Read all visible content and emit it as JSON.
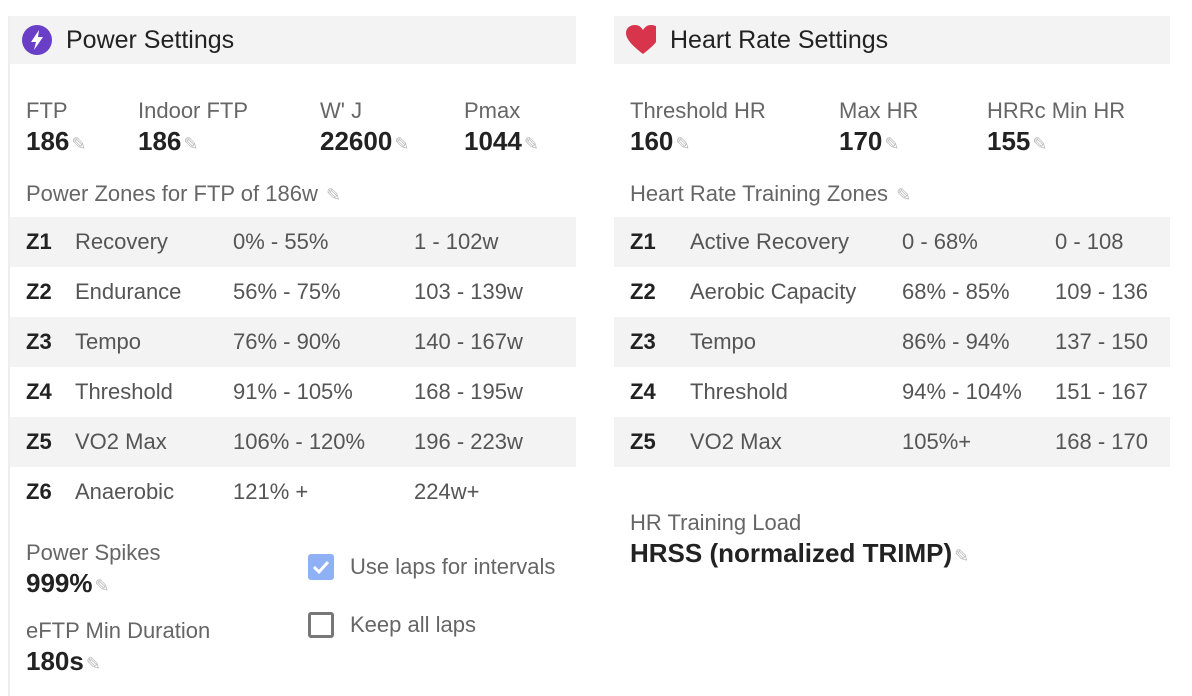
{
  "power": {
    "title": "Power Settings",
    "accent": "#6a3fc8",
    "fields": [
      {
        "label": "FTP",
        "value": "186"
      },
      {
        "label": "Indoor FTP",
        "value": "186"
      },
      {
        "label": "W' J",
        "value": "22600"
      },
      {
        "label": "Pmax",
        "value": "1044"
      }
    ],
    "zones_title": "Power Zones for FTP of 186w",
    "zones": [
      [
        "Z1",
        "Recovery",
        "0% - 55%",
        "1 - 102w"
      ],
      [
        "Z2",
        "Endurance",
        "56% - 75%",
        "103 - 139w"
      ],
      [
        "Z3",
        "Tempo",
        "76% - 90%",
        "140 - 167w"
      ],
      [
        "Z4",
        "Threshold",
        "91% - 105%",
        "168 - 195w"
      ],
      [
        "Z5",
        "VO2 Max",
        "106% - 120%",
        "196 - 223w"
      ],
      [
        "Z6",
        "Anaerobic",
        "121% +",
        "224w+"
      ]
    ],
    "spikes_label": "Power Spikes",
    "spikes_value": "999%",
    "eftp_label": "eFTP Min Duration",
    "eftp_value": "180s",
    "use_laps_label": "Use laps for intervals",
    "use_laps_checked": true,
    "keep_laps_label": "Keep all laps",
    "keep_laps_checked": false
  },
  "hr": {
    "title": "Heart Rate Settings",
    "accent": "#d8344b",
    "fields": [
      {
        "label": "Threshold HR",
        "value": "160"
      },
      {
        "label": "Max HR",
        "value": "170"
      },
      {
        "label": "HRRc Min HR",
        "value": "155"
      }
    ],
    "zones_title": "Heart Rate Training Zones",
    "zones": [
      [
        "Z1",
        "Active Recovery",
        "0 - 68%",
        "0 - 108"
      ],
      [
        "Z2",
        "Aerobic Capacity",
        "68% - 85%",
        "109 - 136"
      ],
      [
        "Z3",
        "Tempo",
        "86% - 94%",
        "137 - 150"
      ],
      [
        "Z4",
        "Threshold",
        "94% - 104%",
        "151 - 167"
      ],
      [
        "Z5",
        "VO2 Max",
        "105%+",
        "168 - 170"
      ]
    ],
    "load_label": "HR Training Load",
    "load_value": "HRSS (normalized TRIMP)"
  }
}
